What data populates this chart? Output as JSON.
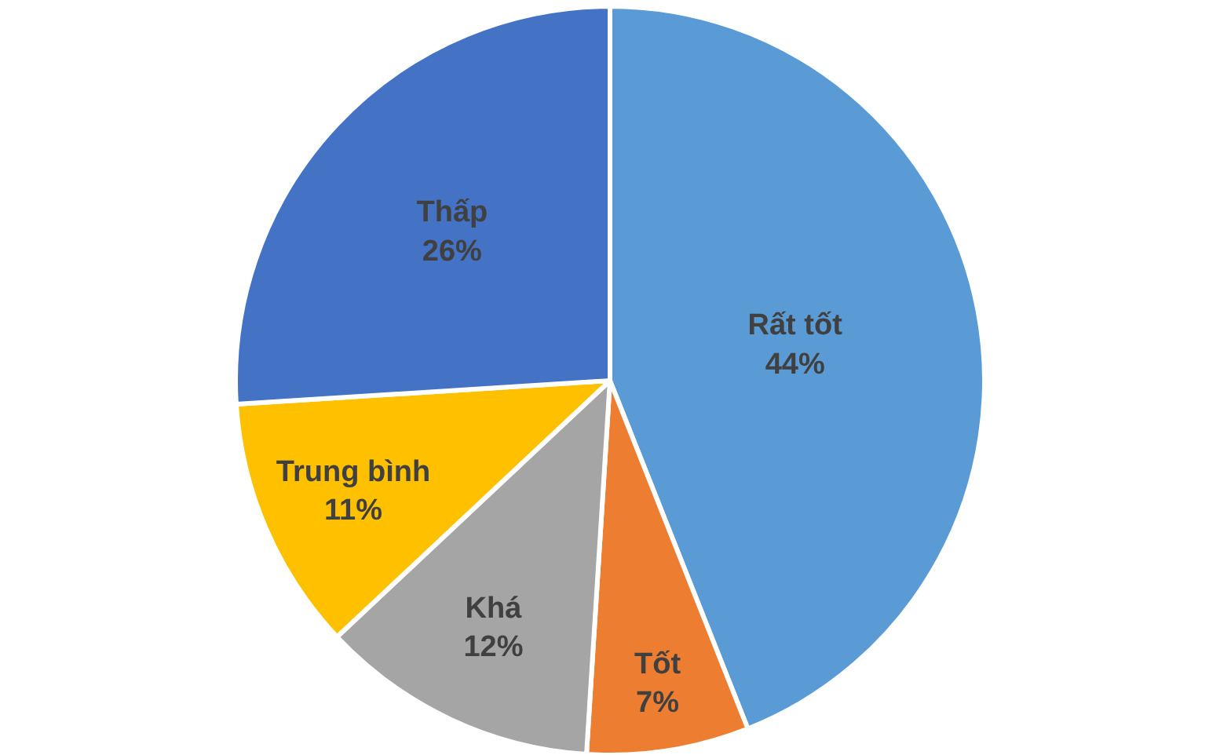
{
  "chart_data": {
    "type": "pie",
    "categories": [
      "Rất tốt",
      "Tốt",
      "Khá",
      "Trung bình",
      "Thấp"
    ],
    "values": [
      44,
      7,
      12,
      11,
      26
    ],
    "value_labels": [
      "44%",
      "7%",
      "12%",
      "11%",
      "26%"
    ],
    "colors": [
      "#5b9bd5",
      "#ed7d31",
      "#a5a5a5",
      "#ffc000",
      "#4472c4"
    ],
    "legend": false
  }
}
